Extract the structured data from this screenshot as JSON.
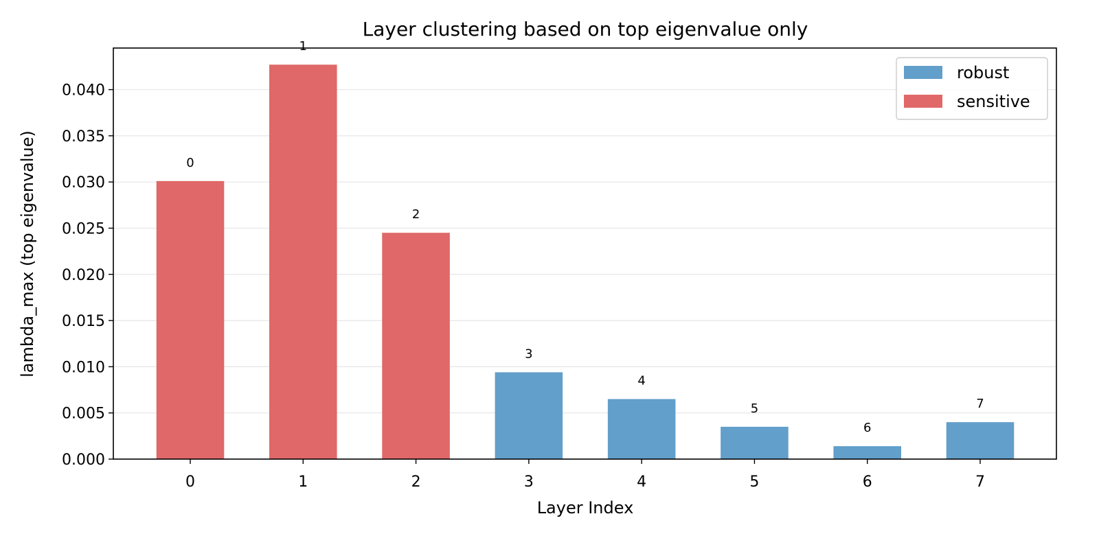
{
  "chart_data": {
    "type": "bar",
    "title": "Layer clustering based on top eigenvalue only",
    "xlabel": "Layer Index",
    "ylabel": "lambda_max (top eigenvalue)",
    "categories": [
      "0",
      "1",
      "2",
      "3",
      "4",
      "5",
      "6",
      "7"
    ],
    "values": [
      0.0301,
      0.0427,
      0.0245,
      0.0094,
      0.0065,
      0.0035,
      0.0014,
      0.004
    ],
    "clusters": [
      "sensitive",
      "sensitive",
      "sensitive",
      "robust",
      "robust",
      "robust",
      "robust",
      "robust"
    ],
    "bar_labels": [
      "0",
      "1",
      "2",
      "3",
      "4",
      "5",
      "6",
      "7"
    ],
    "ylim": [
      0,
      0.0445
    ],
    "yticks": [
      0,
      0.005,
      0.01,
      0.015,
      0.02,
      0.025,
      0.03,
      0.035,
      0.04
    ],
    "ytick_labels": [
      "0.000",
      "0.005",
      "0.010",
      "0.015",
      "0.020",
      "0.025",
      "0.030",
      "0.035",
      "0.040"
    ],
    "grid": "horizontal",
    "legend": {
      "placement": "top-right",
      "entries": [
        {
          "name": "robust",
          "color": "#629fca"
        },
        {
          "name": "sensitive",
          "color": "#e06868"
        }
      ]
    },
    "colors": {
      "robust": "#629fca",
      "sensitive": "#e06868"
    }
  }
}
